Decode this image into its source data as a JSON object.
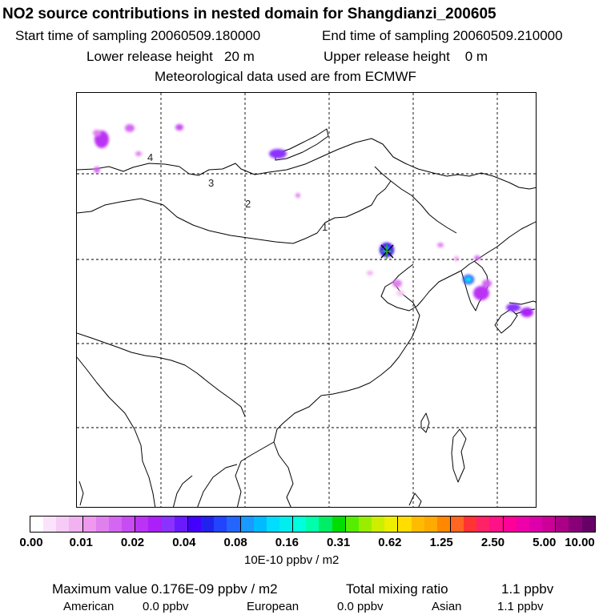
{
  "header": {
    "title": "NO2 source contributions in nested domain for Shangdianzi_200605",
    "start_label": "Start time of sampling 20060509.180000",
    "end_label": "End time of sampling 20060509.210000",
    "lower_label": "Lower release height   20 m",
    "upper_label": "Upper release height    0 m",
    "met_label": "Meteorological data used are from ECMWF"
  },
  "map": {
    "region_labels": [
      "1",
      "2",
      "3",
      "4"
    ],
    "station_marker": "receptor-station"
  },
  "colorbar": {
    "colors": [
      "#ffffff",
      "#fbe4fb",
      "#f6cbf6",
      "#f2b2f2",
      "#ee99ee",
      "#e080ee",
      "#d466f2",
      "#c84cf2",
      "#bb33f5",
      "#aa20f7",
      "#8a33ff",
      "#6a1aff",
      "#4400ff",
      "#2222ee",
      "#2244ff",
      "#2266ff",
      "#1a99ff",
      "#00bbff",
      "#00ddff",
      "#00eeee",
      "#00ffdd",
      "#00ffaa",
      "#00ee66",
      "#00dd00",
      "#55ee00",
      "#99ee00",
      "#ccee00",
      "#eeee00",
      "#ffdd00",
      "#ffbb00",
      "#ffaa00",
      "#ff8800",
      "#ff6622",
      "#ff3333",
      "#ff2266",
      "#ff1188",
      "#ff0099",
      "#ee00aa",
      "#dd00aa",
      "#cc0099",
      "#aa0088",
      "#880077",
      "#660066"
    ],
    "ticks": [
      "0.00",
      "0.01",
      "0.02",
      "0.04",
      "0.08",
      "0.16",
      "0.31",
      "0.62",
      "1.25",
      "2.50",
      "5.00",
      "10.00"
    ],
    "units": "10E-10 ppbv / m2"
  },
  "footer": {
    "max_label": "Maximum value  0.176E-09 ppbv / m2",
    "total_label": "Total mixing ratio",
    "total_value": "1.1 ppbv",
    "american_label": "American",
    "american_value": "0.0 ppbv",
    "european_label": "European",
    "european_value": "0.0 ppbv",
    "asian_label": "Asian",
    "asian_value": "1.1 ppbv"
  }
}
